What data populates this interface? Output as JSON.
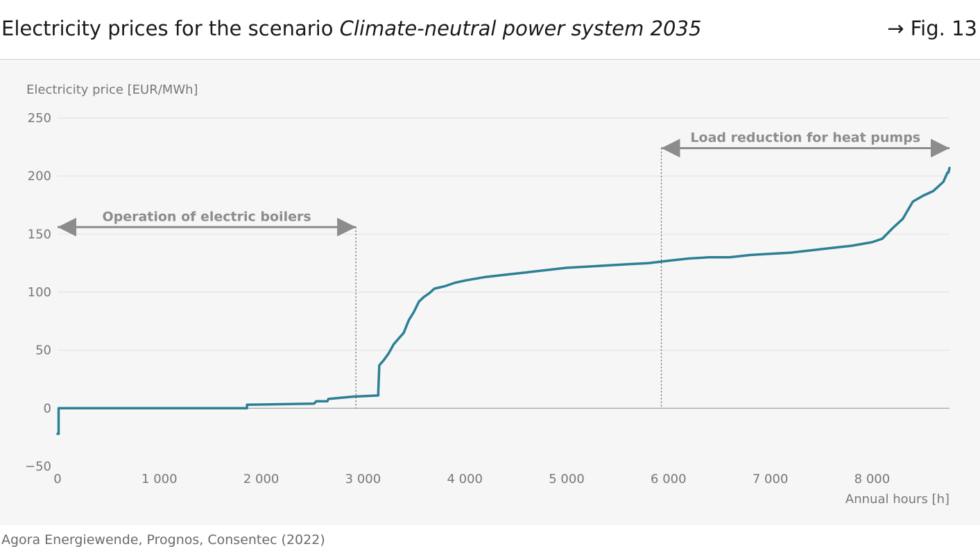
{
  "header": {
    "title_plain": "Electricity prices for the scenario ",
    "title_italic": "Climate-neutral power system 2035",
    "fig_ref": "→ Fig. 13"
  },
  "source": "Agora Energiewende, Prognos, Consentec (2022)",
  "colors": {
    "line": "#2d7f95",
    "grid": "#e3e3e3",
    "zero_line": "#9a9a9a",
    "arrow": "#8c8c8c",
    "text": "#777777"
  },
  "chart_data": {
    "type": "line",
    "title": "",
    "ylabel": "Electricity price [EUR/MWh]",
    "xlabel": "Annual hours [h]",
    "xlim": [
      0,
      8760
    ],
    "ylim": [
      -50,
      250
    ],
    "x_ticks": [
      0,
      1000,
      2000,
      3000,
      4000,
      5000,
      6000,
      7000,
      8000
    ],
    "x_tick_labels": [
      "0",
      "1 000",
      "2 000",
      "3 000",
      "4 000",
      "5 000",
      "6 000",
      "7 000",
      "8 000"
    ],
    "y_ticks": [
      -50,
      0,
      50,
      100,
      150,
      200,
      250
    ],
    "y_tick_labels": [
      "−50",
      "0",
      "50",
      "100",
      "150",
      "200",
      "250"
    ],
    "grid": true,
    "series": [
      {
        "x": [
          0,
          10,
          10,
          1860,
          1860,
          2520,
          2540,
          2650,
          2660,
          2900,
          3150,
          3150,
          3160,
          3200,
          3250,
          3300,
          3350,
          3400,
          3450,
          3500,
          3550,
          3600,
          3650,
          3700,
          3800,
          3900,
          4000,
          4200,
          4400,
          4600,
          4800,
          5000,
          5200,
          5400,
          5600,
          5800,
          6000,
          6200,
          6400,
          6600,
          6800,
          7000,
          7200,
          7400,
          7600,
          7800,
          8000,
          8100,
          8200,
          8300,
          8400,
          8500,
          8600,
          8700,
          8740,
          8750,
          8760
        ],
        "y": [
          -22,
          -22,
          0,
          0,
          3,
          4,
          6,
          6,
          8,
          10,
          11,
          14,
          37,
          41,
          47,
          55,
          60,
          65,
          76,
          83,
          92,
          96,
          99,
          103,
          105,
          108,
          110,
          113,
          115,
          117,
          119,
          121,
          122,
          123,
          124,
          125,
          127,
          129,
          130,
          130,
          132,
          133,
          134,
          136,
          138,
          140,
          143,
          146,
          155,
          163,
          178,
          183,
          187,
          195,
          203,
          203,
          207
        ]
      }
    ],
    "annotations": [
      {
        "label": "Operation of electric boilers",
        "x_from": 0,
        "x_to": 2930,
        "y": 156,
        "divider_x": 2930
      },
      {
        "label": "Load reduction for heat pumps",
        "x_from": 5930,
        "x_to": 8760,
        "y": 224,
        "divider_x": 5930
      }
    ]
  }
}
